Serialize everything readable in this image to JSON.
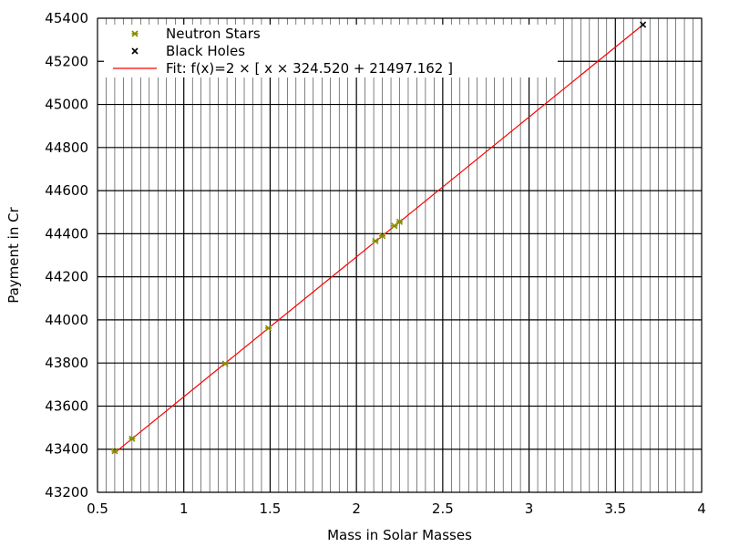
{
  "chart_data": {
    "type": "scatter",
    "xlabel": "Mass in Solar Masses",
    "ylabel": "Payment in Cr",
    "xlim": [
      0.5,
      4
    ],
    "ylim": [
      43200,
      45400
    ],
    "x_ticks": [
      0.5,
      1,
      1.5,
      2,
      2.5,
      3,
      3.5,
      4
    ],
    "x_tick_labels": [
      "0.5",
      "1",
      "1.5",
      "2",
      "2.5",
      "3",
      "3.5",
      "4"
    ],
    "y_ticks": [
      43200,
      43400,
      43600,
      43800,
      44000,
      44200,
      44400,
      44600,
      44800,
      45000,
      45200,
      45400
    ],
    "y_tick_labels": [
      "43200",
      "43400",
      "43600",
      "43800",
      "44000",
      "44200",
      "44400",
      "44600",
      "44800",
      "45000",
      "45200",
      "45400"
    ],
    "x_minor_step": 0.05,
    "grid": true,
    "legend_position": "top-left",
    "series": [
      {
        "name": "Neutron Stars",
        "kind": "points",
        "marker": "star",
        "color": "#8a8a00",
        "x": [
          0.6,
          0.7,
          1.24,
          1.49,
          2.11,
          2.15,
          2.22,
          2.25
        ],
        "y": [
          43391,
          43449,
          43797,
          43962,
          44366,
          44390,
          44436,
          44455
        ]
      },
      {
        "name": "Black Holes",
        "kind": "points",
        "marker": "x",
        "color": "#000000",
        "x": [
          3.66
        ],
        "y": [
          45370
        ]
      },
      {
        "name": "Fit: f(x)=2 × [ x × 324.520 + 21497.162 ]",
        "kind": "line",
        "color": "#ff0000",
        "slope": 649.04,
        "intercept": 42994.324,
        "x_range": [
          0.6,
          3.66
        ]
      }
    ]
  }
}
